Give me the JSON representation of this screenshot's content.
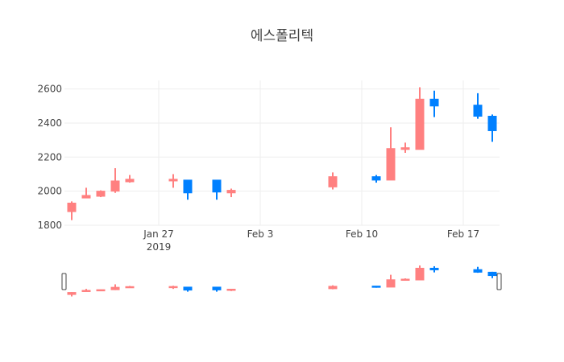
{
  "chart_data": {
    "type": "candlestick",
    "title": "에스폴리텍",
    "xlabel": "",
    "ylabel": "",
    "ylim": [
      1800,
      2650
    ],
    "yticks": [
      1800,
      2000,
      2200,
      2400,
      2600
    ],
    "xticks": [
      {
        "date": "2019-01-27",
        "label": "Jan 27",
        "sublabel": "2019"
      },
      {
        "date": "2019-02-03",
        "label": "Feb 3",
        "sublabel": ""
      },
      {
        "date": "2019-02-10",
        "label": "Feb 10",
        "sublabel": ""
      },
      {
        "date": "2019-02-17",
        "label": "Feb 17",
        "sublabel": ""
      }
    ],
    "xrange": [
      "2019-01-20T12:00",
      "2019-02-19T12:00"
    ],
    "grid": true,
    "rangeslider": true,
    "increasing_color": "#ff8080",
    "decreasing_color": "#0080ff",
    "candles": [
      {
        "date": "2019-01-21",
        "open": 1880,
        "high": 1940,
        "low": 1830,
        "close": 1930
      },
      {
        "date": "2019-01-22",
        "open": 1960,
        "high": 2020,
        "low": 1960,
        "close": 1975
      },
      {
        "date": "2019-01-23",
        "open": 1970,
        "high": 2005,
        "low": 1965,
        "close": 2000
      },
      {
        "date": "2019-01-24",
        "open": 2000,
        "high": 2135,
        "low": 1990,
        "close": 2060
      },
      {
        "date": "2019-01-25",
        "open": 2055,
        "high": 2095,
        "low": 2050,
        "close": 2070
      },
      {
        "date": "2019-01-28",
        "open": 2060,
        "high": 2100,
        "low": 2020,
        "close": 2070
      },
      {
        "date": "2019-01-29",
        "open": 2065,
        "high": 2065,
        "low": 1950,
        "close": 1990
      },
      {
        "date": "2019-01-31",
        "open": 2065,
        "high": 2065,
        "low": 1950,
        "close": 1995
      },
      {
        "date": "2019-02-01",
        "open": 1990,
        "high": 2015,
        "low": 1965,
        "close": 2005
      },
      {
        "date": "2019-02-08",
        "open": 2025,
        "high": 2110,
        "low": 2010,
        "close": 2085
      },
      {
        "date": "2019-02-11",
        "open": 2085,
        "high": 2095,
        "low": 2050,
        "close": 2065
      },
      {
        "date": "2019-02-12",
        "open": 2065,
        "high": 2375,
        "low": 2065,
        "close": 2250
      },
      {
        "date": "2019-02-13",
        "open": 2245,
        "high": 2285,
        "low": 2225,
        "close": 2255
      },
      {
        "date": "2019-02-14",
        "open": 2245,
        "high": 2610,
        "low": 2245,
        "close": 2540
      },
      {
        "date": "2019-02-15",
        "open": 2540,
        "high": 2590,
        "low": 2435,
        "close": 2500
      },
      {
        "date": "2019-02-18",
        "open": 2505,
        "high": 2575,
        "low": 2425,
        "close": 2440
      },
      {
        "date": "2019-02-19",
        "open": 2440,
        "high": 2450,
        "low": 2290,
        "close": 2355
      }
    ]
  }
}
